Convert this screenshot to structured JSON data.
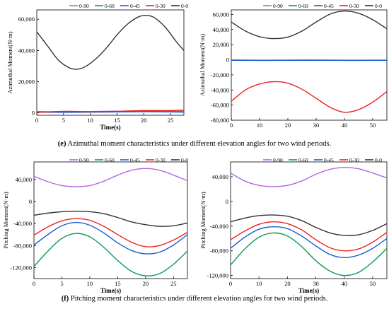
{
  "caption_e": {
    "letter": "(e)",
    "text": " Azimuthal moment characteristics under different elevation angles for two wind periods."
  },
  "caption_f": {
    "letter": "(f)",
    "text": " Pitching moment characteristics under different elevation angles for two wind periods."
  },
  "legend_labels": [
    "0-90",
    "0-60",
    "0-45",
    "0-30",
    "0-0"
  ],
  "series_colors": {
    "0-90": "#b266e0",
    "0-60": "#0a9a55",
    "0-45": "#1a5fd6",
    "0-30": "#ee2222",
    "0-0": "#333333"
  },
  "chart_data": [
    {
      "type": "line",
      "panel": "e-left",
      "xlabel": "Time(s)",
      "ylabel": "Azimuthal Moment(N·m)",
      "xlim": [
        0,
        27.5
      ],
      "ylim": [
        -1500,
        66000
      ],
      "xticks": [
        0,
        5,
        10,
        15,
        20,
        25
      ],
      "yticks": [
        0,
        20000,
        40000,
        60000
      ],
      "ytick_labels": [
        "0",
        "20,000",
        "40,000",
        "60,000"
      ],
      "legend_position": "top",
      "series": [
        {
          "name": "0-90",
          "x": [
            0,
            5,
            10,
            15,
            20,
            25,
            27.5
          ],
          "y": [
            900,
            700,
            900,
            1100,
            1300,
            1100,
            1000
          ]
        },
        {
          "name": "0-60",
          "x": [
            0,
            5,
            10,
            15,
            20,
            25,
            27.5
          ],
          "y": [
            700,
            500,
            650,
            850,
            1000,
            800,
            700
          ]
        },
        {
          "name": "0-45",
          "x": [
            0,
            5,
            10,
            15,
            20,
            25,
            27.5
          ],
          "y": [
            500,
            350,
            450,
            600,
            750,
            600,
            500
          ]
        },
        {
          "name": "0-30",
          "x": [
            0,
            5,
            10,
            15,
            20,
            25,
            27.5
          ],
          "y": [
            300,
            1000,
            800,
            1000,
            1500,
            1500,
            1800
          ]
        },
        {
          "name": "0-0",
          "x": [
            0,
            2,
            4,
            6,
            7.5,
            9,
            11,
            13,
            15,
            17,
            19,
            20.5,
            22,
            24,
            26,
            27.5
          ],
          "y": [
            52000,
            43000,
            34000,
            29000,
            28000,
            29500,
            34500,
            41500,
            50000,
            57000,
            61500,
            62500,
            61000,
            55000,
            46000,
            40000
          ]
        }
      ]
    },
    {
      "type": "line",
      "panel": "e-right",
      "xlabel": "",
      "ylabel": "Azimuthal Moment(N·m)",
      "xlim": [
        0,
        55
      ],
      "ylim": [
        -80000,
        66000
      ],
      "xticks": [
        0,
        10,
        20,
        30,
        40,
        50
      ],
      "yticks": [
        -80000,
        -60000,
        -40000,
        -20000,
        0,
        20000,
        40000,
        60000
      ],
      "ytick_labels": [
        "-80,000",
        "-60,000",
        "-40,000",
        "-20,000",
        "0",
        "20,000",
        "40,000",
        "60,000"
      ],
      "legend_position": "top",
      "series": [
        {
          "name": "0-90",
          "x": [
            0,
            10,
            20,
            30,
            40,
            55
          ],
          "y": [
            -300,
            -500,
            -400,
            -300,
            -500,
            -400
          ]
        },
        {
          "name": "0-60",
          "x": [
            0,
            10,
            20,
            30,
            40,
            55
          ],
          "y": [
            -500,
            -700,
            -600,
            -500,
            -700,
            -600
          ]
        },
        {
          "name": "0-45",
          "x": [
            0,
            10,
            20,
            30,
            40,
            55
          ],
          "y": [
            -700,
            -900,
            -800,
            -700,
            -900,
            -800
          ]
        },
        {
          "name": "0-30",
          "x": [
            0,
            5,
            10,
            15,
            20,
            25,
            30,
            35,
            40,
            45,
            50,
            55
          ],
          "y": [
            -55000,
            -40000,
            -32000,
            -29000,
            -31000,
            -39000,
            -51000,
            -63000,
            -69500,
            -66000,
            -56000,
            -42000
          ]
        },
        {
          "name": "0-0",
          "x": [
            0,
            5,
            10,
            15,
            20,
            25,
            30,
            35,
            40,
            45,
            50,
            55
          ],
          "y": [
            50000,
            38000,
            30500,
            28000,
            30000,
            38000,
            50000,
            60500,
            64500,
            61500,
            53000,
            41000
          ]
        }
      ]
    },
    {
      "type": "line",
      "panel": "f-left",
      "xlabel": "Time(s)",
      "ylabel": "Pitching Moment(N·m)",
      "xlim": [
        0,
        27.5
      ],
      "ylim": [
        -140000,
        72000
      ],
      "xticks": [
        0,
        5,
        10,
        15,
        20,
        25
      ],
      "yticks": [
        -120000,
        -80000,
        -40000,
        0,
        40000
      ],
      "ytick_labels": [
        "-120,000",
        "-80,000",
        "-40,000",
        "0",
        "40,000"
      ],
      "legend_position": "top",
      "series": [
        {
          "name": "0-90",
          "x": [
            0,
            2.5,
            5,
            7.5,
            10,
            12.5,
            15,
            17.5,
            20,
            22.5,
            25,
            27.5
          ],
          "y": [
            46000,
            36000,
            29000,
            27000,
            29000,
            37000,
            48000,
            57000,
            60000,
            57000,
            48000,
            38000
          ]
        },
        {
          "name": "0-60",
          "x": [
            0,
            2.5,
            5,
            7.5,
            10,
            12.5,
            15,
            17.5,
            20,
            22.5,
            25,
            27.5
          ],
          "y": [
            -118000,
            -90000,
            -67000,
            -58000,
            -64000,
            -83000,
            -107000,
            -127000,
            -135000,
            -131000,
            -114000,
            -90000
          ]
        },
        {
          "name": "0-45",
          "x": [
            0,
            2.5,
            5,
            7.5,
            10,
            12.5,
            15,
            17.5,
            20,
            22.5,
            25,
            27.5
          ],
          "y": [
            -79000,
            -60000,
            -44000,
            -38000,
            -43000,
            -57000,
            -75000,
            -89000,
            -95000,
            -92000,
            -79000,
            -60000
          ]
        },
        {
          "name": "0-30",
          "x": [
            0,
            2.5,
            5,
            7.5,
            10,
            12.5,
            15,
            17.5,
            20,
            22.5,
            25,
            27.5
          ],
          "y": [
            -61000,
            -46000,
            -35000,
            -31000,
            -34000,
            -45000,
            -60000,
            -74000,
            -82000,
            -80000,
            -70000,
            -56000
          ]
        },
        {
          "name": "0-0",
          "x": [
            0,
            2.5,
            5,
            7.5,
            10,
            12.5,
            15,
            17.5,
            20,
            22.5,
            25,
            27.5
          ],
          "y": [
            -25000,
            -21000,
            -18500,
            -17500,
            -18500,
            -22000,
            -29000,
            -37000,
            -42000,
            -45000,
            -44000,
            -39000
          ]
        }
      ]
    },
    {
      "type": "line",
      "panel": "f-right",
      "xlabel": "Time(s)",
      "ylabel": "Pitching Moment(N·m)",
      "xlim": [
        0,
        55
      ],
      "ylim": [
        -125000,
        64000
      ],
      "xticks": [
        0,
        10,
        20,
        30,
        40,
        50
      ],
      "yticks": [
        -120000,
        -80000,
        -40000,
        0,
        40000
      ],
      "ytick_labels": [
        "-120,000",
        "-80,000",
        "-40,000",
        "0",
        "40,000"
      ],
      "legend_position": "top",
      "series": [
        {
          "name": "0-90",
          "x": [
            0,
            5,
            10,
            15,
            20,
            25,
            30,
            35,
            40,
            45,
            50,
            55
          ],
          "y": [
            46000,
            33000,
            26000,
            24000,
            26000,
            33000,
            44000,
            52000,
            55000,
            53000,
            46000,
            38000
          ]
        },
        {
          "name": "0-60",
          "x": [
            0,
            5,
            10,
            15,
            20,
            25,
            30,
            35,
            40,
            45,
            50,
            55
          ],
          "y": [
            -103000,
            -77000,
            -58000,
            -51000,
            -56000,
            -73000,
            -96000,
            -113000,
            -120000,
            -115000,
            -98000,
            -76000
          ]
        },
        {
          "name": "0-45",
          "x": [
            0,
            5,
            10,
            15,
            20,
            25,
            30,
            35,
            40,
            45,
            50,
            55
          ],
          "y": [
            -76000,
            -58000,
            -45000,
            -41000,
            -44000,
            -56000,
            -72000,
            -86000,
            -91000,
            -87000,
            -76000,
            -60000
          ]
        },
        {
          "name": "0-30",
          "x": [
            0,
            5,
            10,
            15,
            20,
            25,
            30,
            35,
            40,
            45,
            50,
            55
          ],
          "y": [
            -62000,
            -48000,
            -37000,
            -33000,
            -36000,
            -46000,
            -62000,
            -75000,
            -80000,
            -77000,
            -66000,
            -50000
          ]
        },
        {
          "name": "0-0",
          "x": [
            0,
            5,
            10,
            15,
            20,
            25,
            30,
            35,
            40,
            45,
            50,
            55
          ],
          "y": [
            -33000,
            -27000,
            -23000,
            -22000,
            -24000,
            -31000,
            -42000,
            -51000,
            -55000,
            -54000,
            -47000,
            -36000
          ]
        }
      ]
    }
  ]
}
